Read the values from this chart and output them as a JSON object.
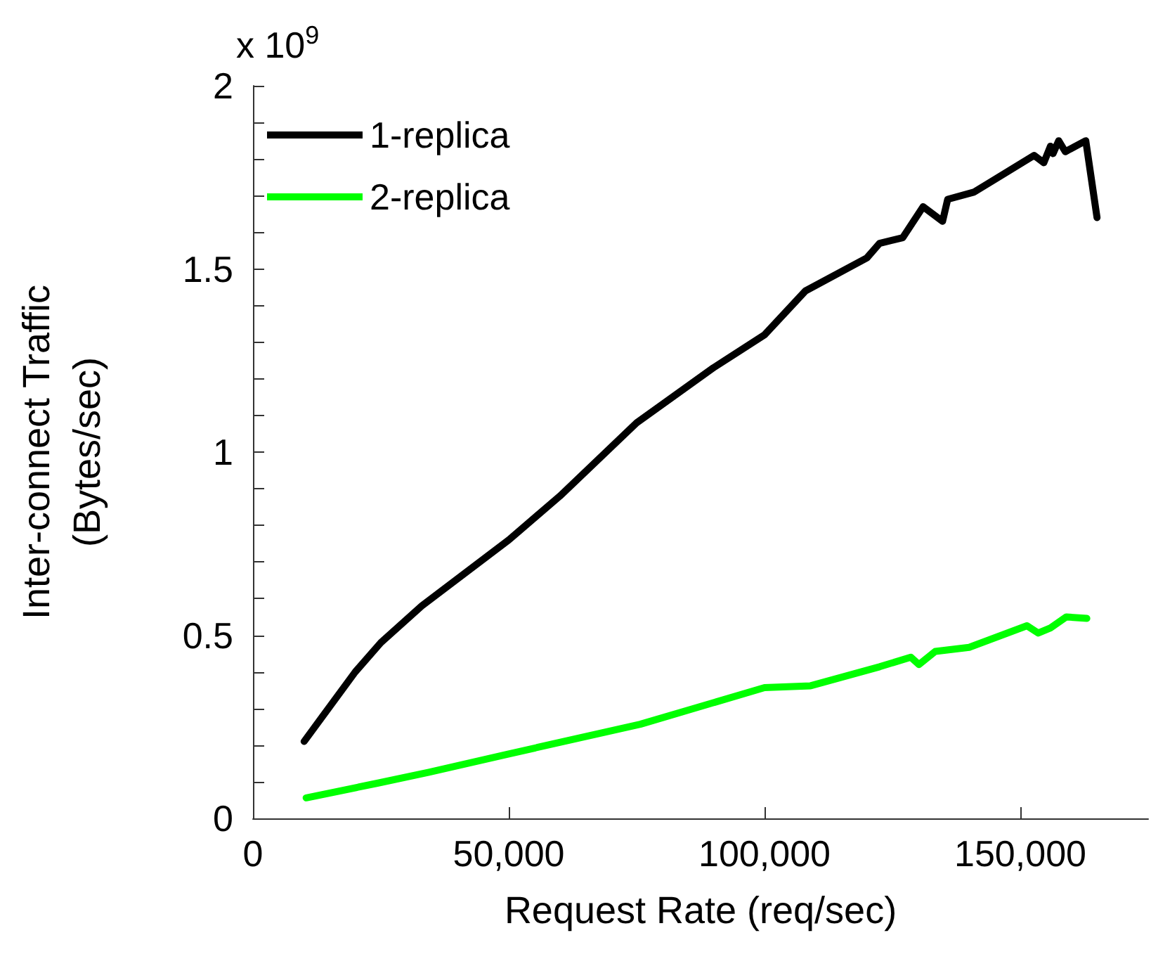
{
  "chart_data": {
    "type": "line",
    "xlabel": "Request Rate (req/sec)",
    "ylabel": "Inter-connect Traffic\n(Bytes/sec)",
    "annotations": [
      "x 10$^{9}$"
    ],
    "xlim": [
      0,
      175000
    ],
    "xticks": [
      {
        "value": 0,
        "label": "0"
      },
      {
        "value": 50000,
        "label": "50,000"
      },
      {
        "value": 100000,
        "label": "100,000"
      },
      {
        "value": 150000,
        "label": "150,000"
      }
    ],
    "ylim": [
      0,
      2
    ],
    "yticks": [
      0,
      {
        "value": 0.1,
        "label": null
      },
      {
        "value": 0.2,
        "label": null
      },
      {
        "value": 0.3,
        "label": null
      },
      {
        "value": 0.4,
        "label": null
      },
      0.5,
      {
        "value": 0.6,
        "label": null
      },
      {
        "value": 0.7,
        "label": null
      },
      {
        "value": 0.8,
        "label": null
      },
      {
        "value": 0.9,
        "label": null
      },
      1,
      {
        "value": 1.1,
        "label": null
      },
      {
        "value": 1.2,
        "label": null
      },
      {
        "value": 1.3,
        "label": null
      },
      {
        "value": 1.4,
        "label": null
      },
      1.5,
      {
        "value": 1.6,
        "label": null
      },
      {
        "value": 1.7,
        "label": null
      },
      {
        "value": 1.8,
        "label": null
      },
      {
        "value": 1.9,
        "label": null
      },
      2
    ],
    "grid": false,
    "legend": "top left",
    "marker": "none",
    "line_style": "solid",
    "series": [
      {
        "name": "1-replica",
        "color": "#000000",
        "x": [
          10000,
          20000,
          25000,
          33000,
          50000,
          60000,
          75000,
          90000,
          100000,
          108000,
          120000,
          122500,
          127000,
          131000,
          134800,
          135800,
          141000,
          152700,
          154600,
          155900,
          156400,
          157500,
          158800,
          162800,
          165000
        ],
        "values": [
          0.21,
          0.4,
          0.48,
          0.58,
          0.76,
          0.88,
          1.08,
          1.23,
          1.32,
          1.44,
          1.53,
          1.57,
          1.585,
          1.67,
          1.63,
          1.69,
          1.71,
          1.81,
          1.79,
          1.835,
          1.815,
          1.85,
          1.82,
          1.85,
          1.64
        ]
      },
      {
        "name": "2-replica",
        "color": "#00ff00",
        "x": [
          10400,
          24300,
          34400,
          50000,
          75700,
          100000,
          109000,
          122500,
          128600,
          130200,
          133400,
          140000,
          151300,
          153500,
          155900,
          159000,
          163000
        ],
        "values": [
          0.056,
          0.096,
          0.126,
          0.176,
          0.257,
          0.357,
          0.362,
          0.414,
          0.44,
          0.42,
          0.456,
          0.467,
          0.526,
          0.506,
          0.52,
          0.55,
          0.546
        ]
      }
    ]
  }
}
